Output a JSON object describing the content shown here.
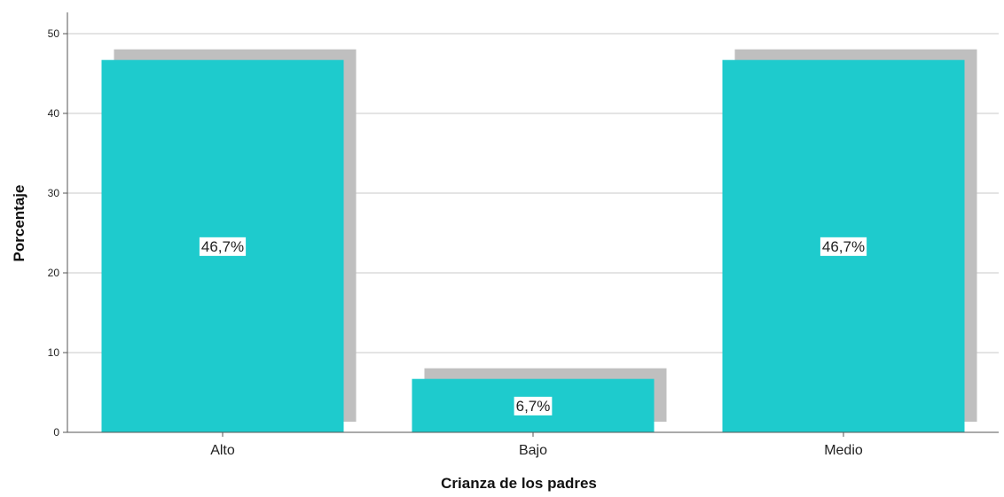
{
  "chart_data": {
    "type": "bar",
    "title": "",
    "xlabel": "Crianza de los padres",
    "ylabel": "Porcentaje",
    "categories": [
      "Alto",
      "Bajo",
      "Medio"
    ],
    "values": [
      46.7,
      6.7,
      46.7
    ],
    "data_labels": [
      "46,7%",
      "6,7%",
      "46,7%"
    ],
    "y_ticks": [
      0,
      10,
      20,
      30,
      40,
      50
    ],
    "y_tick_labels": [
      "0",
      "10",
      "20",
      "30",
      "40",
      "50"
    ],
    "ylim": [
      0,
      50
    ],
    "grid": true,
    "legend": "none",
    "bar_style": "3d-shadow",
    "colors": {
      "bar": "#1ECBCD",
      "shadow": "#BFBFBF",
      "grid": "#C8C8C8",
      "axis": "#555555",
      "label_box": "#FFFFFF"
    }
  }
}
